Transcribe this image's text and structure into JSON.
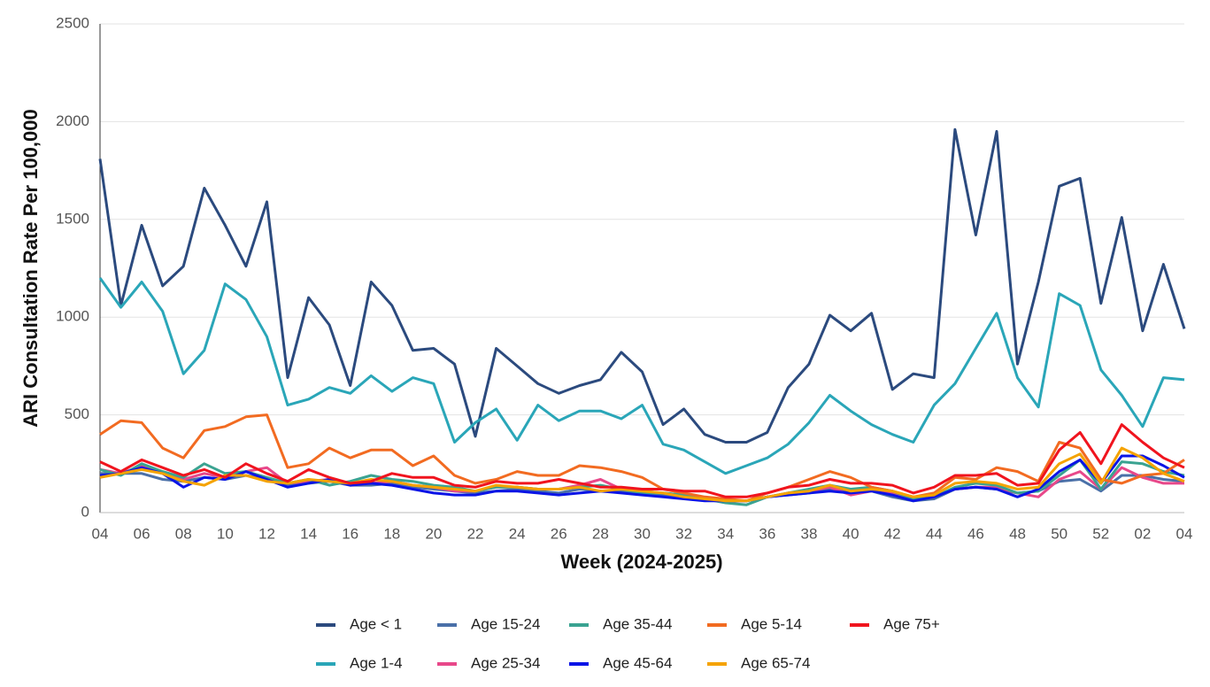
{
  "chart_data": {
    "type": "line",
    "xlabel": "Week (2024-2025)",
    "ylabel": "ARI Consultation Rate Per 100,000",
    "categories": [
      "04",
      null,
      "06",
      null,
      "08",
      null,
      "10",
      null,
      "12",
      null,
      "14",
      null,
      "16",
      null,
      "18",
      null,
      "20",
      null,
      "22",
      null,
      "24",
      null,
      "26",
      null,
      "28",
      null,
      "30",
      null,
      "32",
      null,
      "34",
      null,
      "36",
      null,
      "38",
      null,
      "40",
      null,
      "42",
      null,
      "44",
      null,
      "46",
      null,
      "48",
      null,
      "50",
      null,
      "52",
      null,
      "02",
      null,
      "04"
    ],
    "ylim": [
      0,
      2500
    ],
    "yticks": [
      0,
      500,
      1000,
      1500,
      2000,
      2500
    ],
    "grid": true,
    "legend": "bottom",
    "series": [
      {
        "name": "Age < 1",
        "color": "#2b4a7e",
        "values": [
          1810,
          1060,
          1470,
          1160,
          1260,
          1660,
          1470,
          1260,
          1590,
          690,
          1100,
          960,
          650,
          1180,
          1060,
          830,
          840,
          760,
          390,
          840,
          750,
          660,
          610,
          650,
          680,
          820,
          720,
          450,
          530,
          400,
          360,
          360,
          410,
          640,
          760,
          1010,
          930,
          1020,
          630,
          710,
          690,
          1960,
          1420,
          1950,
          760,
          1180,
          1670,
          1710,
          1070,
          1510,
          930,
          1270,
          940
        ]
      },
      {
        "name": "Age 1-4",
        "color": "#2aa6b8",
        "values": [
          1200,
          1050,
          1180,
          1030,
          710,
          830,
          1170,
          1090,
          900,
          550,
          580,
          640,
          610,
          700,
          620,
          690,
          660,
          360,
          460,
          530,
          370,
          550,
          470,
          520,
          520,
          480,
          550,
          350,
          320,
          260,
          200,
          240,
          280,
          350,
          460,
          600,
          520,
          450,
          400,
          360,
          550,
          660,
          840,
          1020,
          690,
          540,
          1120,
          1060,
          730,
          600,
          440,
          690,
          680
        ]
      },
      {
        "name": "Age 15-24",
        "color": "#4a70a8",
        "values": [
          200,
          200,
          200,
          170,
          160,
          180,
          170,
          190,
          170,
          140,
          150,
          160,
          140,
          140,
          150,
          130,
          120,
          110,
          100,
          110,
          120,
          110,
          100,
          120,
          110,
          110,
          100,
          90,
          80,
          70,
          60,
          60,
          80,
          90,
          100,
          120,
          110,
          110,
          80,
          60,
          70,
          120,
          130,
          120,
          100,
          110,
          160,
          170,
          110,
          190,
          190,
          170,
          160
        ]
      },
      {
        "name": "Age 25-34",
        "color": "#e8488a",
        "values": [
          220,
          200,
          240,
          200,
          170,
          200,
          180,
          210,
          230,
          150,
          160,
          170,
          140,
          150,
          160,
          140,
          130,
          110,
          110,
          130,
          130,
          120,
          120,
          140,
          170,
          120,
          110,
          100,
          90,
          70,
          60,
          60,
          80,
          100,
          110,
          130,
          90,
          110,
          100,
          70,
          90,
          120,
          130,
          130,
          100,
          80,
          170,
          210,
          120,
          230,
          180,
          150,
          150
        ]
      },
      {
        "name": "Age 35-44",
        "color": "#3aa391",
        "values": [
          220,
          190,
          250,
          210,
          180,
          250,
          200,
          210,
          180,
          150,
          170,
          140,
          160,
          190,
          170,
          160,
          140,
          130,
          110,
          130,
          130,
          120,
          120,
          130,
          140,
          120,
          100,
          100,
          90,
          70,
          50,
          40,
          80,
          100,
          120,
          140,
          120,
          130,
          110,
          70,
          80,
          130,
          150,
          140,
          100,
          110,
          190,
          270,
          120,
          260,
          250,
          210,
          190
        ]
      },
      {
        "name": "Age 45-64",
        "color": "#0a14e6",
        "values": [
          190,
          200,
          230,
          200,
          130,
          180,
          170,
          210,
          170,
          130,
          150,
          170,
          140,
          150,
          140,
          120,
          100,
          90,
          90,
          110,
          110,
          100,
          90,
          100,
          110,
          100,
          90,
          80,
          70,
          60,
          60,
          60,
          80,
          90,
          100,
          110,
          100,
          110,
          90,
          60,
          80,
          120,
          130,
          120,
          80,
          120,
          210,
          270,
          150,
          290,
          290,
          240,
          180
        ]
      },
      {
        "name": "Age 5-14",
        "color": "#f26b21",
        "values": [
          400,
          470,
          460,
          330,
          280,
          420,
          440,
          490,
          500,
          230,
          250,
          330,
          280,
          320,
          320,
          240,
          290,
          190,
          150,
          170,
          210,
          190,
          190,
          240,
          230,
          210,
          180,
          120,
          100,
          80,
          70,
          60,
          100,
          130,
          170,
          210,
          180,
          130,
          110,
          80,
          100,
          180,
          170,
          230,
          210,
          160,
          360,
          330,
          170,
          150,
          190,
          200,
          270
        ]
      },
      {
        "name": "Age 65-74",
        "color": "#f5a300",
        "values": [
          180,
          200,
          220,
          200,
          160,
          140,
          190,
          190,
          160,
          150,
          170,
          160,
          150,
          170,
          160,
          140,
          130,
          120,
          110,
          140,
          130,
          120,
          120,
          130,
          110,
          120,
          110,
          100,
          80,
          70,
          60,
          60,
          80,
          100,
          110,
          140,
          110,
          120,
          110,
          80,
          90,
          150,
          160,
          150,
          120,
          130,
          250,
          300,
          150,
          330,
          280,
          200,
          160
        ]
      },
      {
        "name": "Age 75+",
        "color": "#f0141e",
        "values": [
          260,
          210,
          270,
          230,
          190,
          220,
          180,
          250,
          200,
          160,
          220,
          180,
          150,
          160,
          200,
          180,
          180,
          140,
          130,
          160,
          150,
          150,
          170,
          150,
          130,
          130,
          120,
          120,
          110,
          110,
          80,
          80,
          100,
          130,
          140,
          170,
          150,
          150,
          140,
          100,
          130,
          190,
          190,
          200,
          140,
          150,
          320,
          410,
          250,
          450,
          360,
          280,
          230
        ]
      }
    ]
  }
}
